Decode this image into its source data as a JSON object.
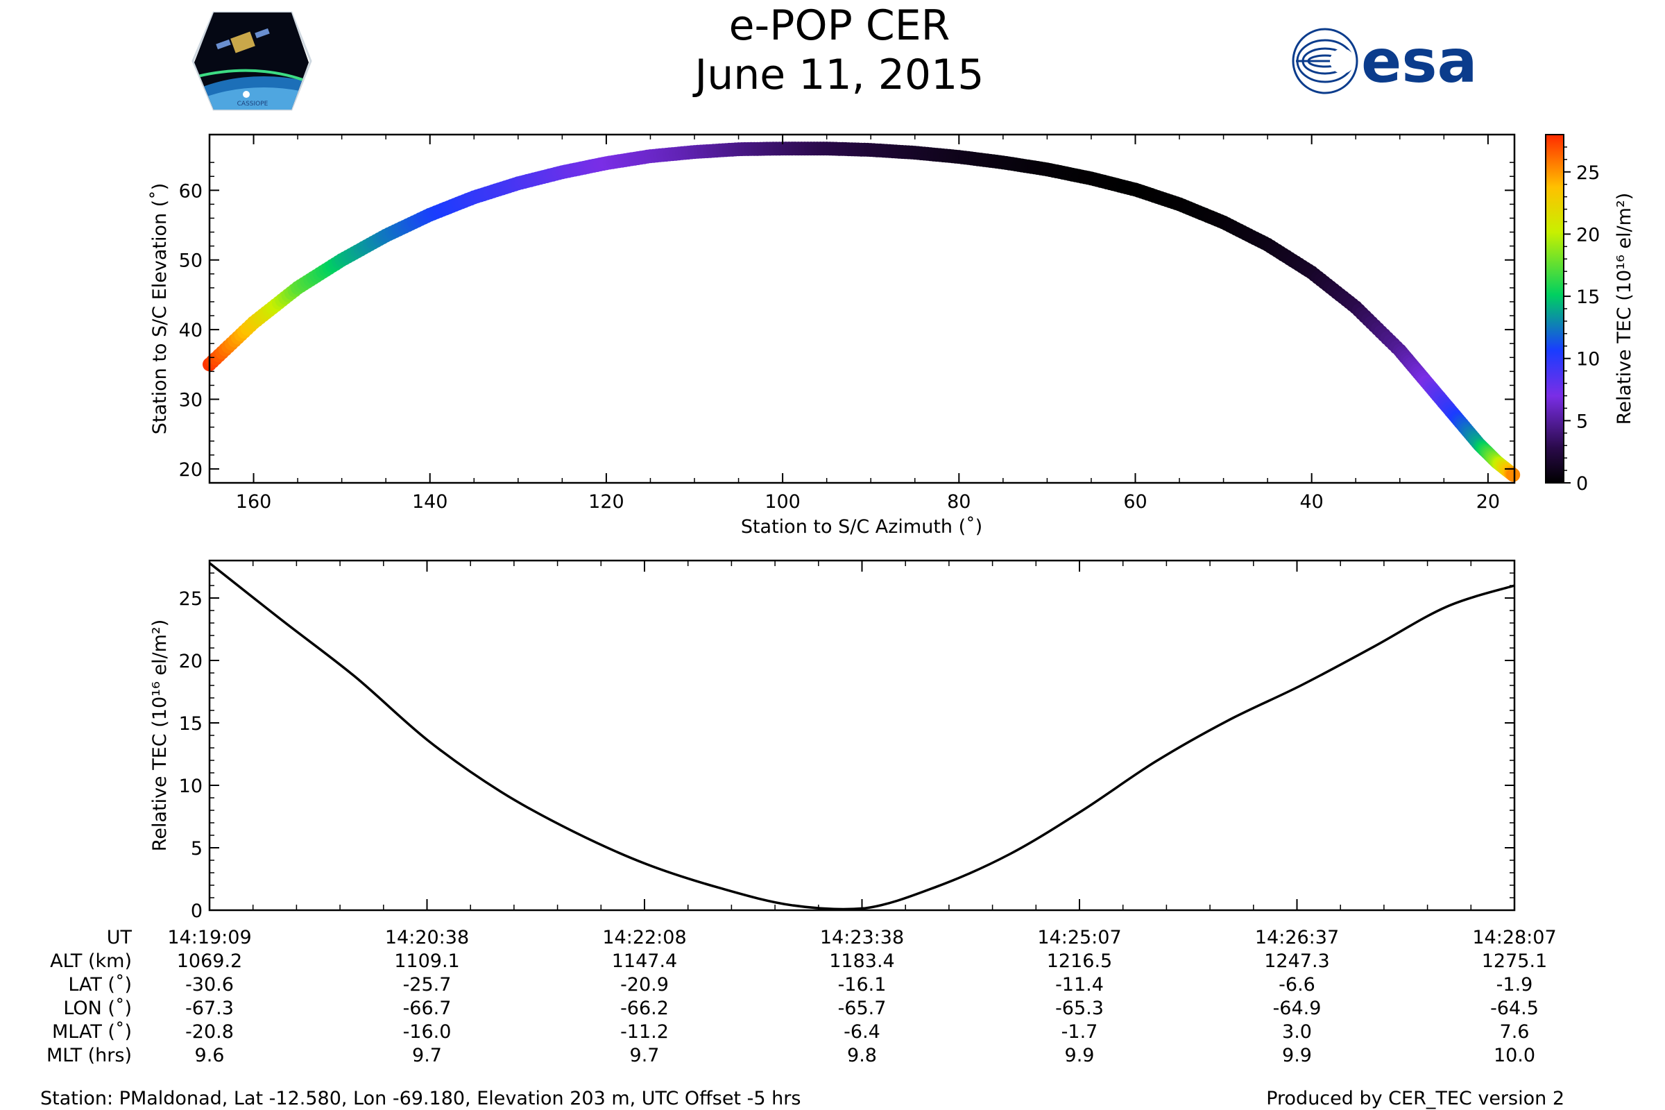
{
  "header": {
    "title": "e-POP CER",
    "date": "June 11, 2015",
    "logo_left": "CASSIOPE",
    "logo_right": "esa"
  },
  "colors": {
    "line": "#000000",
    "colormap": [
      "#000000",
      "#2a0a4a",
      "#7a2ee6",
      "#1a3cff",
      "#00d060",
      "#c8f000",
      "#ffc000",
      "#ff2a00"
    ]
  },
  "chart_data": [
    {
      "type": "scatter",
      "title": "",
      "xlabel": "Station to S/C Azimuth (˚)",
      "ylabel": "Station to S/C Elevation (˚)",
      "xlim": [
        165,
        17
      ],
      "ylim": [
        18,
        68
      ],
      "xticks": [
        160,
        140,
        120,
        100,
        80,
        60,
        40,
        20
      ],
      "yticks": [
        20,
        30,
        40,
        50,
        60
      ],
      "track": {
        "azimuth": [
          165,
          160,
          155,
          150,
          145,
          140,
          135,
          130,
          125,
          120,
          115,
          110,
          105,
          100,
          95,
          90,
          85,
          80,
          75,
          70,
          65,
          60,
          55,
          50,
          45,
          40,
          35,
          30,
          27,
          24,
          21,
          19,
          17
        ],
        "elevation": [
          35,
          41,
          46,
          50,
          53.5,
          56.5,
          59,
          61,
          62.6,
          63.9,
          64.9,
          65.5,
          65.9,
          66,
          66,
          65.8,
          65.4,
          64.8,
          64,
          63,
          61.7,
          60.1,
          58,
          55.4,
          52.2,
          48.2,
          43.2,
          37,
          32.5,
          28,
          23.5,
          21,
          19
        ],
        "tec": [
          27.7,
          23,
          17.5,
          14.5,
          12.5,
          10.9,
          9.8,
          8.9,
          7.9,
          7,
          6.3,
          5.5,
          4.5,
          3.6,
          2.8,
          2.1,
          1.5,
          1,
          0.6,
          0.3,
          0.1,
          0,
          0.1,
          0.3,
          0.8,
          1.5,
          2.8,
          4.9,
          7,
          10,
          14,
          19,
          25.8
        ]
      },
      "colorbar": {
        "label": "Relative TEC (10¹⁶ el/m²)",
        "range": [
          0,
          28
        ],
        "ticks": [
          0,
          5,
          10,
          15,
          20,
          25
        ]
      }
    },
    {
      "type": "line",
      "title": "",
      "xlabel": "",
      "ylabel": "Relative TEC (10¹⁶ el/m²)",
      "x_unit": "seconds since 14:19:09 UT",
      "xlim": [
        0,
        538
      ],
      "ylim": [
        0,
        28
      ],
      "yticks": [
        0,
        5,
        10,
        15,
        20,
        25
      ],
      "series": [
        {
          "name": "Relative TEC",
          "x": [
            0,
            30,
            60,
            90,
            120,
            150,
            180,
            210,
            240,
            270,
            300,
            330,
            360,
            390,
            420,
            450,
            480,
            510,
            538
          ],
          "y": [
            27.8,
            23.2,
            18.7,
            13.6,
            9.5,
            6.3,
            3.7,
            1.8,
            0.4,
            0.15,
            1.9,
            4.5,
            8,
            11.9,
            15.2,
            18,
            21.1,
            24.3,
            26
          ]
        }
      ]
    }
  ],
  "table": {
    "row_labels": [
      "UT",
      "ALT (km)",
      "LAT (˚)",
      "LON (˚)",
      "MLAT (˚)",
      "MLT (hrs)"
    ],
    "columns": [
      [
        "14:19:09",
        "1069.2",
        "-30.6",
        "-67.3",
        "-20.8",
        "9.6"
      ],
      [
        "14:20:38",
        "1109.1",
        "-25.7",
        "-66.7",
        "-16.0",
        "9.7"
      ],
      [
        "14:22:08",
        "1147.4",
        "-20.9",
        "-66.2",
        "-11.2",
        "9.7"
      ],
      [
        "14:23:38",
        "1183.4",
        "-16.1",
        "-65.7",
        "-6.4",
        "9.8"
      ],
      [
        "14:25:07",
        "1216.5",
        "-11.4",
        "-65.3",
        "-1.7",
        "9.9"
      ],
      [
        "14:26:37",
        "1247.3",
        "-6.6",
        "-64.9",
        "3.0",
        "9.9"
      ],
      [
        "14:28:07",
        "1275.1",
        "-1.9",
        "-64.5",
        "7.6",
        "10.0"
      ]
    ]
  },
  "footer": {
    "station": "Station: PMaldonad, Lat -12.580, Lon -69.180, Elevation 203 m, UTC Offset -5 hrs",
    "producer": "Produced by CER_TEC version 2"
  }
}
